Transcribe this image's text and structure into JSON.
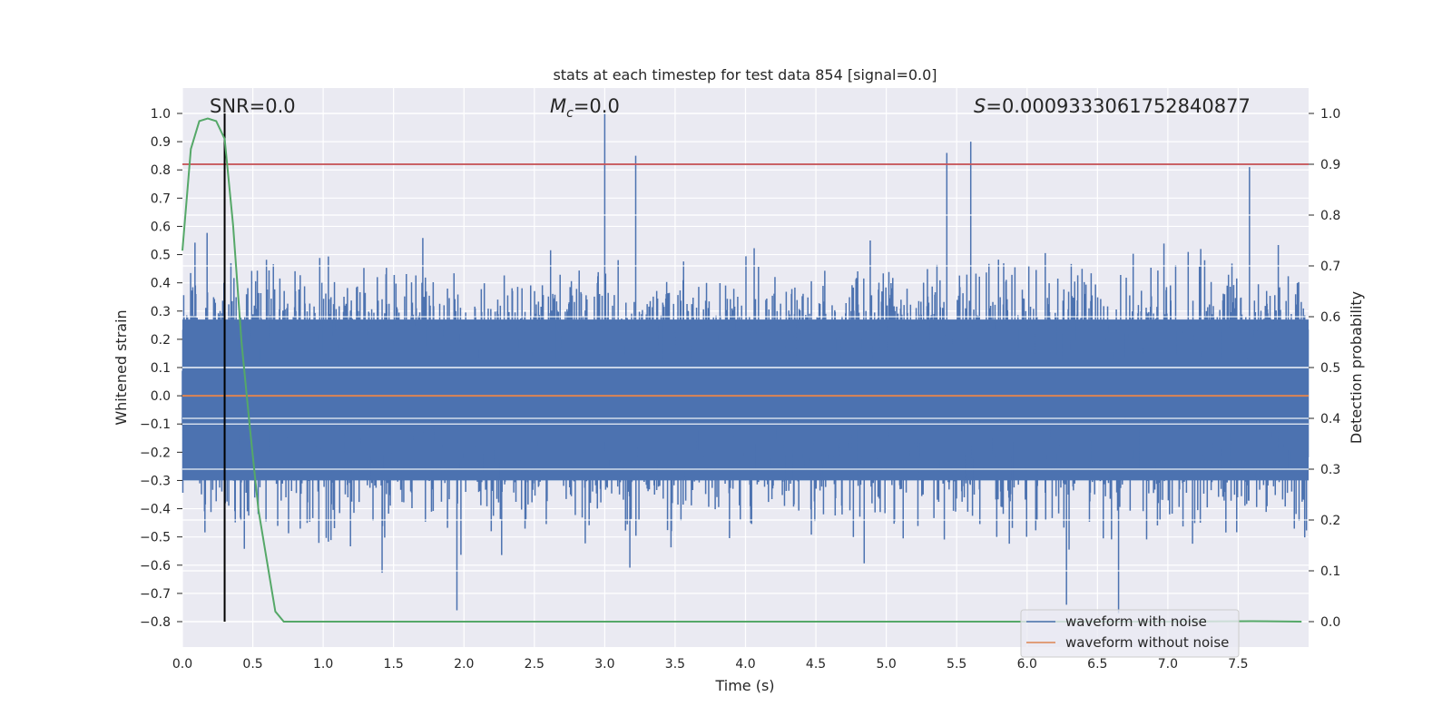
{
  "chart_data": {
    "type": "line",
    "title": "stats at each timestep for test data 854 [signal=0.0]",
    "xlabel": "Time (s)",
    "ylabel": "Whitened strain",
    "ylabel_right": "Detection probability",
    "xlim": [
      0.0,
      8.0
    ],
    "ylim": [
      -0.89,
      1.09
    ],
    "ylim_right": [
      -0.05,
      1.05
    ],
    "xticks": [
      "0.0",
      "0.5",
      "1.0",
      "1.5",
      "2.0",
      "2.5",
      "3.0",
      "3.5",
      "4.0",
      "4.5",
      "5.0",
      "5.5",
      "6.0",
      "6.5",
      "7.0",
      "7.5"
    ],
    "yticks": [
      "1.0",
      "0.9",
      "0.8",
      "0.7",
      "0.6",
      "0.5",
      "0.4",
      "0.3",
      "0.2",
      "0.1",
      "0.0",
      "−0.1",
      "−0.2",
      "−0.3",
      "−0.4",
      "−0.5",
      "−0.6",
      "−0.7",
      "−0.8"
    ],
    "yticks_right": [
      "1.0",
      "0.9",
      "0.8",
      "0.7",
      "0.6",
      "0.5",
      "0.4",
      "0.3",
      "0.2",
      "0.1",
      "0.0"
    ],
    "annotations": {
      "snr": "SNR=0.0",
      "mc_sym": "M",
      "mc_sub": "c",
      "mc_val": "=0.0",
      "s_sym": "S",
      "s_val": "=0.0009333061752840877"
    },
    "grid": true,
    "legend_position": "lower right",
    "series": [
      {
        "name": "waveform with noise",
        "color": "#4c72b0",
        "envelope_typical": [
          -0.42,
          0.42
        ],
        "peaks": [
          {
            "x": 3.0,
            "y": 1.0
          },
          {
            "x": 3.22,
            "y": 0.85
          },
          {
            "x": 5.43,
            "y": 0.86
          },
          {
            "x": 5.6,
            "y": 0.9
          },
          {
            "x": 7.58,
            "y": 0.81
          },
          {
            "x": 1.95,
            "y": -0.76
          },
          {
            "x": 6.65,
            "y": -0.77
          },
          {
            "x": 6.28,
            "y": -0.74
          }
        ]
      },
      {
        "name": "waveform without noise",
        "color": "#dd8452",
        "constant": 0.0
      },
      {
        "name": "detection probability",
        "axis": "right",
        "color": "#55a868",
        "x": [
          0.0,
          0.06,
          0.12,
          0.18,
          0.24,
          0.3,
          0.36,
          0.42,
          0.48,
          0.54,
          0.6,
          0.66,
          0.72,
          0.8,
          1.0,
          2.0,
          3.0,
          4.0,
          5.0,
          6.0,
          7.0,
          7.6,
          7.95
        ],
        "y": [
          0.73,
          0.93,
          0.985,
          0.99,
          0.985,
          0.95,
          0.78,
          0.55,
          0.38,
          0.22,
          0.12,
          0.02,
          0.0,
          0.0,
          0.0,
          0.0,
          0.0,
          0.0,
          0.0,
          0.0,
          0.0,
          0.001,
          0.0
        ]
      },
      {
        "name": "threshold",
        "axis": "right",
        "color": "#c44e52",
        "constant": 0.9
      },
      {
        "name": "marker",
        "color": "#000000",
        "vline_x": 0.3
      }
    ]
  },
  "legend": {
    "items": [
      {
        "label": "waveform with noise",
        "color": "#4c72b0"
      },
      {
        "label": "waveform without noise",
        "color": "#dd8452"
      }
    ]
  }
}
